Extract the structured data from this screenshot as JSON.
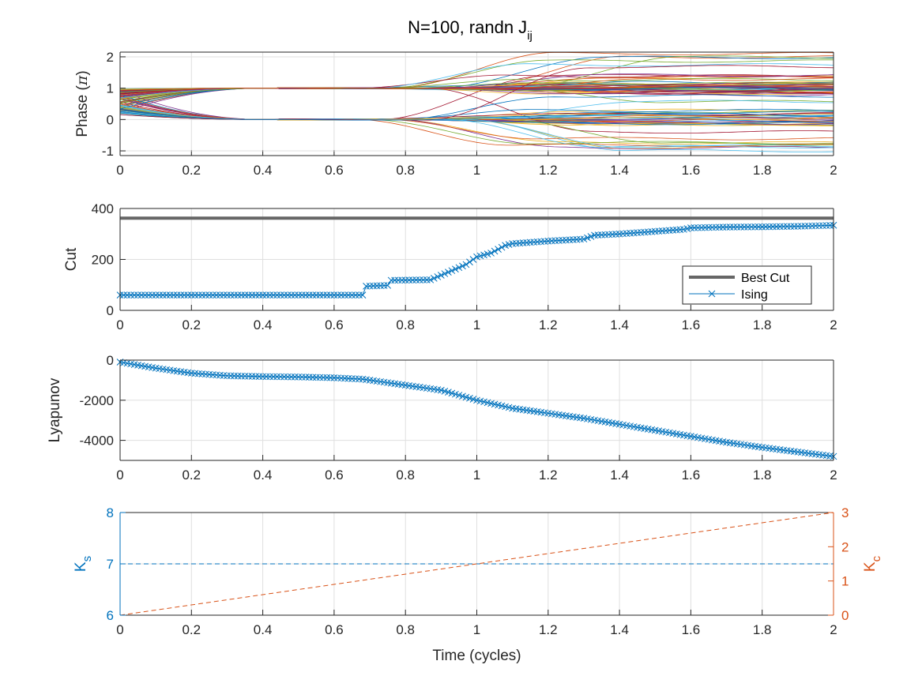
{
  "title": {
    "main": "N=100, randn J",
    "subscript": "ij"
  },
  "chart_data": [
    {
      "type": "line",
      "ylabel": "Phase (π)",
      "ylabel_parts": [
        "Phase (",
        "π",
        ")"
      ],
      "xlim": [
        0,
        2
      ],
      "ylim": [
        -1.15,
        2.15
      ],
      "x_ticks": [
        "0",
        "0.2",
        "0.4",
        "0.6",
        "0.8",
        "1",
        "1.2",
        "1.4",
        "1.6",
        "1.8",
        "2"
      ],
      "y_ticks": [
        "-1",
        "0",
        "1",
        "2"
      ],
      "y_tick_values": [
        -1,
        0,
        1,
        2
      ],
      "grid": true,
      "series_count": 100,
      "description": "100 oscillator phase trajectories starting near 0.2-0.8, converging to ~0 or ~1 by t=0.5, then spreading between -1 and 2 after t=0.65",
      "series_colors": [
        "#0072BD",
        "#D95319",
        "#EDB120",
        "#7E2F8E",
        "#77AC30",
        "#4DBEEE",
        "#A2142F"
      ]
    },
    {
      "type": "line",
      "ylabel": "Cut",
      "xlim": [
        0,
        2
      ],
      "ylim": [
        0,
        400
      ],
      "x_ticks": [
        "0",
        "0.2",
        "0.4",
        "0.6",
        "0.8",
        "1",
        "1.2",
        "1.4",
        "1.6",
        "1.8",
        "2"
      ],
      "y_ticks": [
        "0",
        "200",
        "400"
      ],
      "y_tick_values": [
        0,
        200,
        400
      ],
      "grid": true,
      "legend": {
        "placement": "lower-right",
        "entries": [
          "Best Cut",
          "Ising"
        ]
      },
      "series": [
        {
          "name": "Best Cut",
          "color": "#666666",
          "style": "solid-thick",
          "x": [
            0,
            2
          ],
          "values": [
            362,
            362
          ]
        },
        {
          "name": "Ising",
          "color": "#0072BD",
          "marker": "x",
          "x": [
            0,
            0.68,
            0.69,
            0.75,
            0.76,
            0.87,
            0.92,
            0.97,
            1.0,
            1.04,
            1.08,
            1.1,
            1.2,
            1.3,
            1.33,
            1.4,
            1.5,
            1.58,
            1.6,
            1.7,
            1.8,
            1.9,
            2.0
          ],
          "values": [
            60,
            60,
            95,
            98,
            118,
            120,
            150,
            180,
            210,
            225,
            255,
            262,
            272,
            280,
            295,
            300,
            310,
            318,
            324,
            327,
            328,
            330,
            334
          ]
        }
      ]
    },
    {
      "type": "line",
      "ylabel": "Lyapunov",
      "xlim": [
        0,
        2
      ],
      "ylim": [
        -5000,
        0
      ],
      "x_ticks": [
        "0",
        "0.2",
        "0.4",
        "0.6",
        "0.8",
        "1",
        "1.2",
        "1.4",
        "1.6",
        "1.8",
        "2"
      ],
      "y_ticks": [
        "-4000",
        "-2000",
        "0"
      ],
      "y_tick_values": [
        -4000,
        -2000,
        0
      ],
      "grid": true,
      "series": [
        {
          "name": "Lyapunov",
          "color": "#0072BD",
          "marker": "x",
          "x": [
            0,
            0.1,
            0.2,
            0.3,
            0.4,
            0.5,
            0.6,
            0.68,
            0.8,
            0.9,
            1.0,
            1.1,
            1.2,
            1.3,
            1.4,
            1.5,
            1.6,
            1.7,
            1.8,
            1.9,
            2.0
          ],
          "values": [
            -100,
            -400,
            -650,
            -780,
            -820,
            -840,
            -880,
            -950,
            -1250,
            -1500,
            -2000,
            -2400,
            -2650,
            -2900,
            -3200,
            -3500,
            -3800,
            -4100,
            -4350,
            -4580,
            -4800
          ]
        }
      ]
    },
    {
      "type": "line",
      "xlabel": "Time (cycles)",
      "xlim": [
        0,
        2
      ],
      "x_ticks": [
        "0",
        "0.2",
        "0.4",
        "0.6",
        "0.8",
        "1",
        "1.2",
        "1.4",
        "1.6",
        "1.8",
        "2"
      ],
      "grid": true,
      "left_axis": {
        "label": "K",
        "label_sub": "s",
        "color": "#0072BD",
        "ylim": [
          6,
          8
        ],
        "y_ticks": [
          "6",
          "7",
          "8"
        ],
        "y_tick_values": [
          6,
          7,
          8
        ]
      },
      "right_axis": {
        "label": "K",
        "label_sub": "c",
        "color": "#D95319",
        "ylim": [
          0,
          3
        ],
        "y_ticks": [
          "0",
          "1",
          "2",
          "3"
        ],
        "y_tick_values": [
          0,
          1,
          2,
          3
        ]
      },
      "series": [
        {
          "name": "Ks",
          "axis": "left",
          "color": "#0072BD",
          "style": "dashed",
          "x": [
            0,
            2
          ],
          "values": [
            7,
            7
          ]
        },
        {
          "name": "Kc",
          "axis": "right",
          "color": "#D95319",
          "style": "dashed",
          "x": [
            0,
            2
          ],
          "values": [
            0,
            3
          ]
        }
      ]
    }
  ]
}
